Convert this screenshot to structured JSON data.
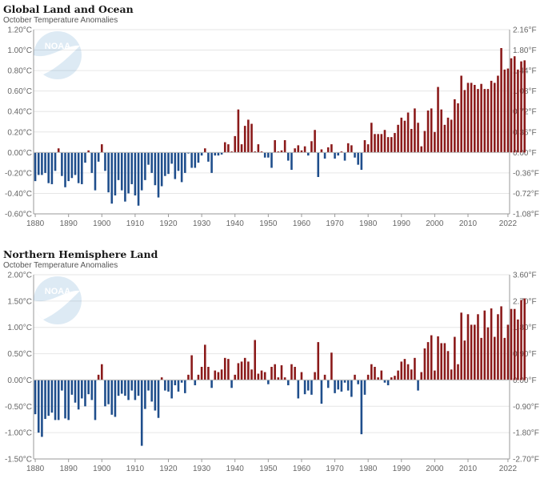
{
  "colors": {
    "positive": "#8b1a1a",
    "negative": "#1f4e8c",
    "logo": "#4a90c8"
  },
  "logo": {
    "icon": "noaa-logo-icon",
    "text": "NOAA"
  },
  "chart_data": [
    {
      "type": "bar",
      "title": "Global Land and Ocean",
      "subtitle": "October Temperature Anomalies",
      "x_start": 1880,
      "x_end": 2022,
      "x_ticks": [
        "1880",
        "1890",
        "1900",
        "1910",
        "1920",
        "1930",
        "1940",
        "1950",
        "1960",
        "1970",
        "1980",
        "1990",
        "2000",
        "2010",
        "2022"
      ],
      "ylim": [
        -0.6,
        1.2
      ],
      "y_ticks_left": [
        "-0.60°C",
        "-0.40°C",
        "-0.20°C",
        "0.00°C",
        "0.20°C",
        "0.40°C",
        "0.60°C",
        "0.80°C",
        "1.00°C",
        "1.20°C"
      ],
      "y_ticks_right": [
        "-1.08°F",
        "-0.72°F",
        "-0.36°F",
        "0.00°F",
        "0.36°F",
        "0.72°F",
        "1.08°F",
        "1.44°F",
        "1.80°F",
        "2.16°F"
      ],
      "values": [
        -0.28,
        -0.22,
        -0.22,
        -0.2,
        -0.3,
        -0.31,
        -0.18,
        0.04,
        -0.23,
        -0.34,
        -0.28,
        -0.25,
        -0.22,
        -0.3,
        -0.31,
        -0.1,
        0.02,
        -0.2,
        -0.37,
        -0.09,
        0.08,
        -0.18,
        -0.39,
        -0.5,
        -0.42,
        -0.27,
        -0.37,
        -0.48,
        -0.4,
        -0.31,
        -0.42,
        -0.52,
        -0.37,
        -0.27,
        -0.12,
        -0.2,
        -0.32,
        -0.44,
        -0.33,
        -0.23,
        -0.21,
        -0.11,
        -0.26,
        -0.18,
        -0.29,
        -0.2,
        -0.01,
        -0.15,
        -0.15,
        -0.1,
        -0.03,
        0.04,
        -0.09,
        -0.2,
        -0.03,
        -0.03,
        -0.02,
        0.1,
        0.08,
        0.01,
        0.16,
        0.42,
        0.08,
        0.26,
        0.32,
        0.28,
        0.01,
        0.08,
        0.01,
        -0.05,
        -0.05,
        -0.15,
        0.12,
        0.01,
        0.02,
        0.12,
        -0.08,
        -0.17,
        0.04,
        0.07,
        0.02,
        0.06,
        -0.03,
        0.11,
        0.22,
        -0.24,
        0.03,
        -0.06,
        0.05,
        0.08,
        -0.06,
        -0.03,
        0.01,
        -0.08,
        0.09,
        0.07,
        -0.05,
        -0.12,
        -0.17,
        0.12,
        0.08,
        0.29,
        0.18,
        0.18,
        0.18,
        0.22,
        0.15,
        0.15,
        0.19,
        0.27,
        0.34,
        0.31,
        0.39,
        0.23,
        0.43,
        0.29,
        0.06,
        0.21,
        0.41,
        0.43,
        0.2,
        0.64,
        0.42,
        0.27,
        0.34,
        0.32,
        0.52,
        0.48,
        0.75,
        0.61,
        0.68,
        0.68,
        0.66,
        0.62,
        0.67,
        0.62,
        0.62,
        0.7,
        0.68,
        0.75,
        1.02,
        0.81,
        0.82,
        0.92,
        0.94,
        0.81,
        0.89,
        0.9
      ]
    },
    {
      "type": "bar",
      "title": "Northern Hemisphere Land",
      "subtitle": "October Temperature Anomalies",
      "x_start": 1880,
      "x_end": 2022,
      "x_ticks": [
        "1880",
        "1890",
        "1900",
        "1910",
        "1920",
        "1930",
        "1940",
        "1950",
        "1960",
        "1970",
        "1980",
        "1990",
        "2000",
        "2010",
        "2022"
      ],
      "ylim": [
        -1.5,
        2.0
      ],
      "y_ticks_left": [
        "-1.50°C",
        "-1.00°C",
        "-0.50°C",
        "0.00°C",
        "0.50°C",
        "1.00°C",
        "1.50°C",
        "2.00°C"
      ],
      "y_ticks_right": [
        "-2.70°F",
        "-1.80°F",
        "-0.90°F",
        "0.00°F",
        "0.90°F",
        "1.80°F",
        "2.70°F",
        "3.60°F"
      ],
      "values": [
        -0.65,
        -1.0,
        -1.08,
        -0.74,
        -0.68,
        -0.62,
        -0.76,
        -0.76,
        -0.2,
        -0.73,
        -0.76,
        -0.28,
        -0.43,
        -0.56,
        -0.35,
        -0.5,
        -0.27,
        -0.38,
        -0.76,
        0.1,
        0.3,
        -0.5,
        -0.46,
        -0.66,
        -0.7,
        -0.3,
        -0.26,
        -0.3,
        -0.38,
        -0.2,
        -0.38,
        -0.3,
        -1.25,
        -0.55,
        -0.2,
        -0.41,
        -0.58,
        -0.72,
        0.05,
        -0.2,
        -0.22,
        -0.35,
        -0.1,
        -0.22,
        -0.05,
        -0.25,
        0.1,
        0.47,
        -0.1,
        0.1,
        0.25,
        0.67,
        0.25,
        -0.15,
        0.18,
        0.15,
        0.2,
        0.42,
        0.4,
        -0.15,
        0.1,
        0.32,
        0.35,
        0.42,
        0.35,
        0.2,
        0.76,
        0.12,
        0.18,
        0.15,
        -0.08,
        0.25,
        0.3,
        0.05,
        0.28,
        0.05,
        -0.1,
        0.3,
        0.25,
        -0.35,
        0.15,
        -0.27,
        -0.2,
        -0.28,
        0.15,
        0.72,
        -0.45,
        0.1,
        -0.15,
        0.52,
        -0.25,
        -0.18,
        -0.22,
        -0.05,
        -0.2,
        -0.32,
        0.1,
        -0.08,
        -1.03,
        -0.28,
        0.1,
        0.3,
        0.25,
        0.05,
        0.18,
        -0.05,
        -0.1,
        0.05,
        0.08,
        0.18,
        0.35,
        0.4,
        0.3,
        0.2,
        0.42,
        -0.2,
        0.15,
        0.6,
        0.72,
        0.85,
        0.18,
        0.83,
        0.7,
        0.7,
        0.55,
        0.2,
        0.82,
        0.3,
        1.28,
        0.75,
        1.25,
        1.05,
        1.05,
        1.25,
        0.8,
        1.32,
        1.0,
        1.36,
        0.82,
        1.25,
        1.4,
        0.8,
        1.05,
        1.35,
        1.35,
        1.15,
        1.52,
        1.55
      ]
    }
  ]
}
